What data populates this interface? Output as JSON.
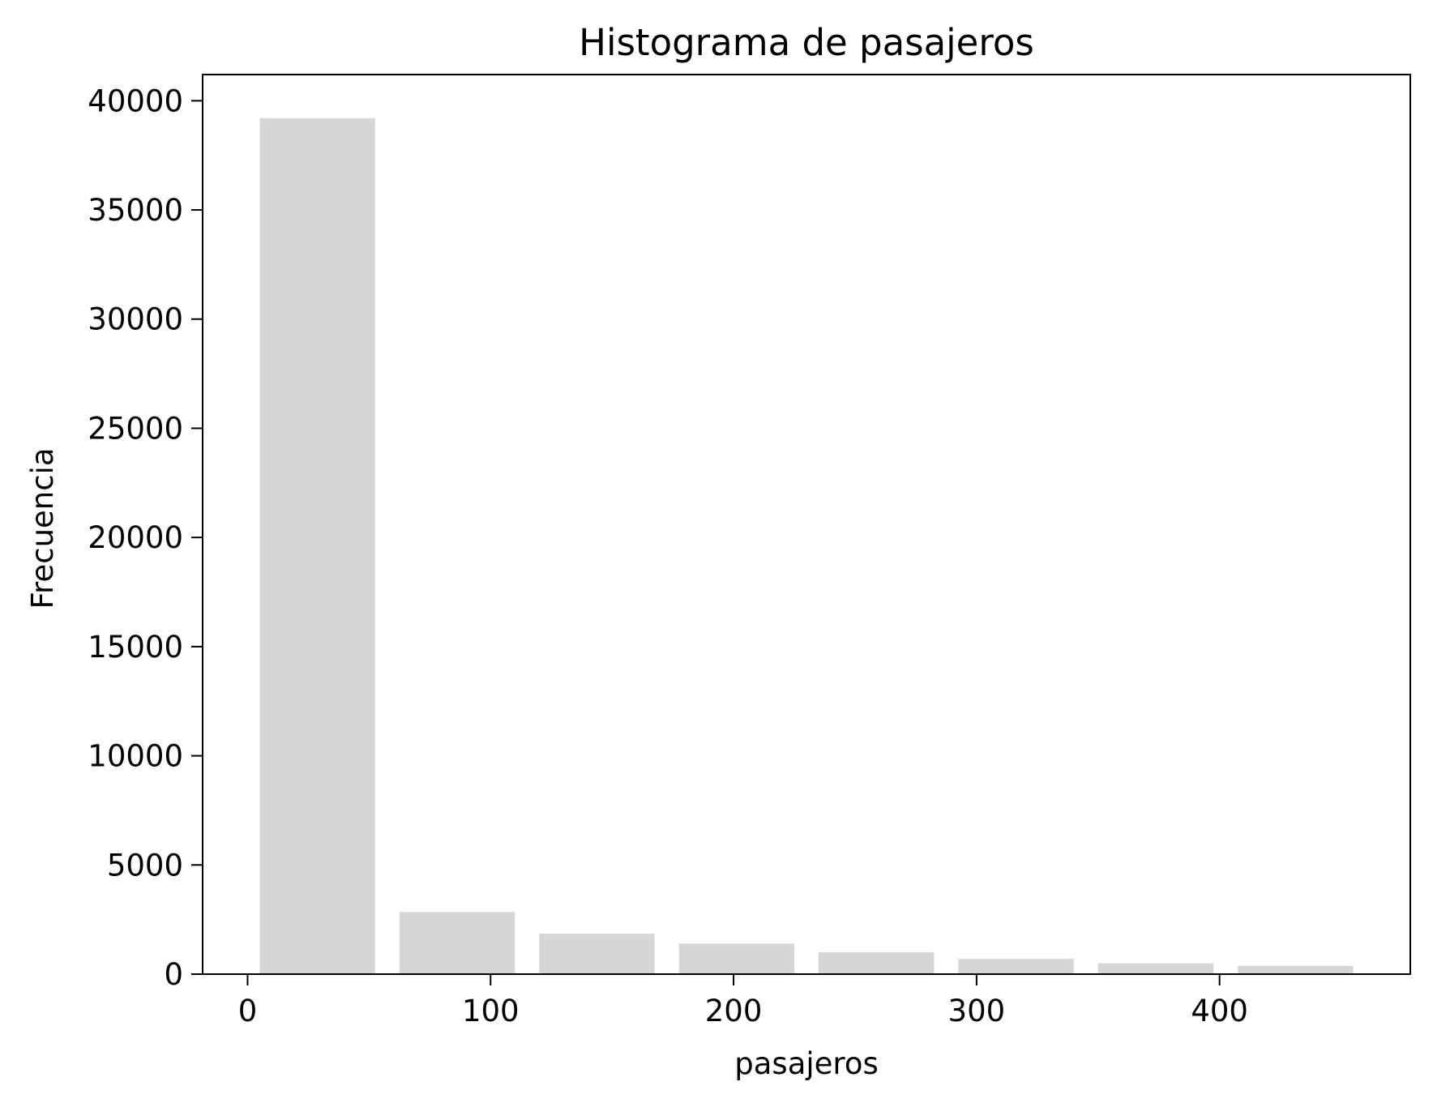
{
  "chart_data": {
    "type": "bar",
    "title": "Histograma de pasajeros",
    "xlabel": "pasajeros",
    "ylabel": "Frecuencia",
    "bins": [
      {
        "start": 5,
        "end": 52.5,
        "value": 39200
      },
      {
        "start": 62.5,
        "end": 110,
        "value": 2850
      },
      {
        "start": 120,
        "end": 167.5,
        "value": 1850
      },
      {
        "start": 177.5,
        "end": 225,
        "value": 1400
      },
      {
        "start": 235,
        "end": 282.5,
        "value": 1000
      },
      {
        "start": 292.5,
        "end": 340,
        "value": 700
      },
      {
        "start": 350,
        "end": 397.5,
        "value": 500
      },
      {
        "start": 407.5,
        "end": 455,
        "value": 380
      }
    ],
    "xlim": [
      -18.5,
      478.5
    ],
    "ylim": [
      0,
      41200
    ],
    "xticks": [
      0,
      100,
      200,
      300,
      400
    ],
    "xtick_labels": [
      "0",
      "100",
      "200",
      "300",
      "400"
    ],
    "yticks": [
      0,
      5000,
      10000,
      15000,
      20000,
      25000,
      30000,
      35000,
      40000
    ],
    "ytick_labels": [
      "0",
      "5000",
      "10000",
      "15000",
      "20000",
      "25000",
      "30000",
      "35000",
      "40000"
    ],
    "grid": false,
    "bar_color": "#d6d6d6",
    "axis_color": "#000000"
  }
}
